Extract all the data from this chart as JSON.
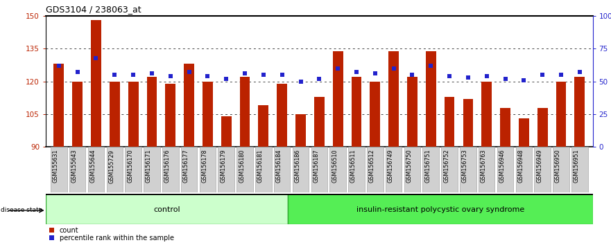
{
  "title": "GDS3104 / 238063_at",
  "categories": [
    "GSM155631",
    "GSM155643",
    "GSM155644",
    "GSM155729",
    "GSM156170",
    "GSM156171",
    "GSM156176",
    "GSM156177",
    "GSM156178",
    "GSM156179",
    "GSM156180",
    "GSM156181",
    "GSM156184",
    "GSM156186",
    "GSM156187",
    "GSM156510",
    "GSM156511",
    "GSM156512",
    "GSM156749",
    "GSM156750",
    "GSM156751",
    "GSM156752",
    "GSM156753",
    "GSM156763",
    "GSM156946",
    "GSM156948",
    "GSM156949",
    "GSM156950",
    "GSM156951"
  ],
  "bar_values": [
    128,
    120,
    148,
    120,
    120,
    122,
    119,
    128,
    120,
    104,
    122,
    109,
    119,
    105,
    113,
    134,
    122,
    120,
    134,
    122,
    134,
    113,
    112,
    120,
    108,
    103,
    108,
    120,
    122
  ],
  "percentile_values": [
    62,
    57,
    68,
    55,
    55,
    56,
    54,
    57,
    54,
    52,
    56,
    55,
    55,
    50,
    52,
    60,
    57,
    56,
    60,
    55,
    62,
    54,
    53,
    54,
    52,
    51,
    55,
    55,
    57
  ],
  "control_count": 13,
  "ylim_left": [
    90,
    150
  ],
  "ylim_right": [
    0,
    100
  ],
  "yticks_left": [
    90,
    105,
    120,
    135,
    150
  ],
  "yticks_right": [
    0,
    25,
    50,
    75,
    100
  ],
  "ytick_labels_right": [
    "0",
    "25",
    "50",
    "75",
    "100%"
  ],
  "bar_color": "#bb2200",
  "percentile_color": "#2222cc",
  "grid_color": "#444444",
  "ctrl_color": "#ccffcc",
  "disease_color": "#55ee55",
  "group_labels": [
    "control",
    "insulin-resistant polycystic ovary syndrome"
  ],
  "legend_labels": [
    "count",
    "percentile rank within the sample"
  ]
}
